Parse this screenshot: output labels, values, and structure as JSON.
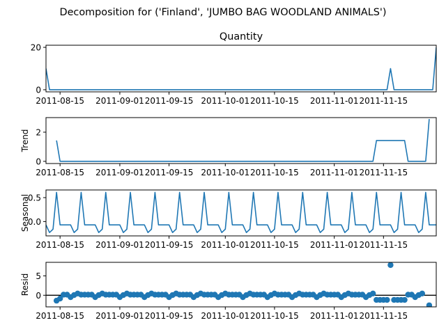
{
  "figure": {
    "suptitle": "Decomposition for ('Finland', 'JUMBO BAG WOODLAND ANIMALS')",
    "line_color": "#1f77b4"
  },
  "chart_data": [
    {
      "type": "line",
      "title": "Quantity",
      "ylabel": "",
      "x_start": "2011-08-11",
      "x_end": "2011-11-30",
      "xticks": [
        "2011-08-15",
        "2011-09-01",
        "2011-09-15",
        "2011-10-01",
        "2011-10-15",
        "2011-11-01",
        "2011-11-15"
      ],
      "xtick_dates": [
        "2011-08-15",
        "2011-09-01",
        "2011-09-15",
        "2011-10-01",
        "2011-10-15",
        "2011-11-01",
        "2011-11-15"
      ],
      "ylim": [
        -1,
        21
      ],
      "yticks": [
        0,
        20
      ],
      "points": [
        [
          "2011-08-11",
          10
        ],
        [
          "2011-08-12",
          0
        ],
        [
          "2011-11-16",
          0
        ],
        [
          "2011-11-17",
          10
        ],
        [
          "2011-11-18",
          0
        ],
        [
          "2011-11-29",
          0
        ],
        [
          "2011-11-30",
          20
        ]
      ]
    },
    {
      "type": "line",
      "title": "",
      "ylabel": "Trend",
      "x_start": "2011-08-11",
      "x_end": "2011-11-30",
      "xticks": [
        "2011-08-15",
        "2011-09-01",
        "2011-09-15",
        "2011-10-01",
        "2011-10-15",
        "2011-11-01",
        "2011-11-15"
      ],
      "xtick_dates": [
        "2011-08-15",
        "2011-09-01",
        "2011-09-15",
        "2011-10-01",
        "2011-10-15",
        "2011-11-01",
        "2011-11-15"
      ],
      "ylim": [
        -0.15,
        3.0
      ],
      "yticks": [
        0,
        2
      ],
      "points": [
        [
          "2011-08-14",
          1.43
        ],
        [
          "2011-08-15",
          0
        ],
        [
          "2011-11-12",
          0
        ],
        [
          "2011-11-13",
          1.43
        ],
        [
          "2011-11-21",
          1.43
        ],
        [
          "2011-11-22",
          0
        ],
        [
          "2011-11-27",
          0
        ],
        [
          "2011-11-28",
          2.9
        ]
      ]
    },
    {
      "type": "line",
      "title": "",
      "ylabel": "Seasonal",
      "x_start": "2011-08-11",
      "x_end": "2011-11-30",
      "xticks": [
        "2011-08-15",
        "2011-09-01",
        "2011-09-15",
        "2011-10-01",
        "2011-10-15",
        "2011-11-01",
        "2011-11-15"
      ],
      "xtick_dates": [
        "2011-08-15",
        "2011-09-01",
        "2011-09-15",
        "2011-10-01",
        "2011-10-15",
        "2011-11-01",
        "2011-11-15"
      ],
      "ylim": [
        -0.3,
        0.66
      ],
      "yticks": [
        0.0,
        0.5
      ],
      "ytick_labels": [
        "0.0",
        "0.5"
      ],
      "period_start": "2011-08-14",
      "period_values": [
        0.61,
        -0.07,
        -0.07,
        -0.07,
        -0.07,
        -0.23,
        -0.16
      ]
    },
    {
      "type": "scatter",
      "title": "",
      "ylabel": "Resid",
      "x_start": "2011-08-11",
      "x_end": "2011-11-30",
      "xticks": [
        "2011-08-15",
        "2011-09-01",
        "2011-09-15",
        "2011-10-01",
        "2011-10-15",
        "2011-11-01",
        "2011-11-15"
      ],
      "xtick_dates": [
        "2011-08-15",
        "2011-09-01",
        "2011-09-15",
        "2011-10-01",
        "2011-10-15",
        "2011-11-01",
        "2011-11-15"
      ],
      "ylim": [
        -3.0,
        8.5
      ],
      "yticks": [
        0,
        5
      ],
      "zero_line": true,
      "residual_day_pattern": [
        0.15,
        0.15,
        0.15,
        0.15,
        -0.5,
        0.05,
        0.45
      ],
      "residual_start": "2011-08-14",
      "residual_end": "2011-11-26",
      "residual_overrides": [
        [
          "2011-08-14",
          -1.4
        ],
        [
          "2011-08-15",
          -0.85
        ],
        [
          "2011-11-13",
          -1.2
        ],
        [
          "2011-11-14",
          -1.2
        ],
        [
          "2011-11-15",
          -1.2
        ],
        [
          "2011-11-16",
          -1.2
        ],
        [
          "2011-11-17",
          7.8
        ],
        [
          "2011-11-18",
          -1.2
        ],
        [
          "2011-11-19",
          -1.2
        ],
        [
          "2011-11-20",
          -1.2
        ],
        [
          "2011-11-21",
          -1.2
        ],
        [
          "2011-11-28",
          -2.6
        ]
      ]
    }
  ]
}
